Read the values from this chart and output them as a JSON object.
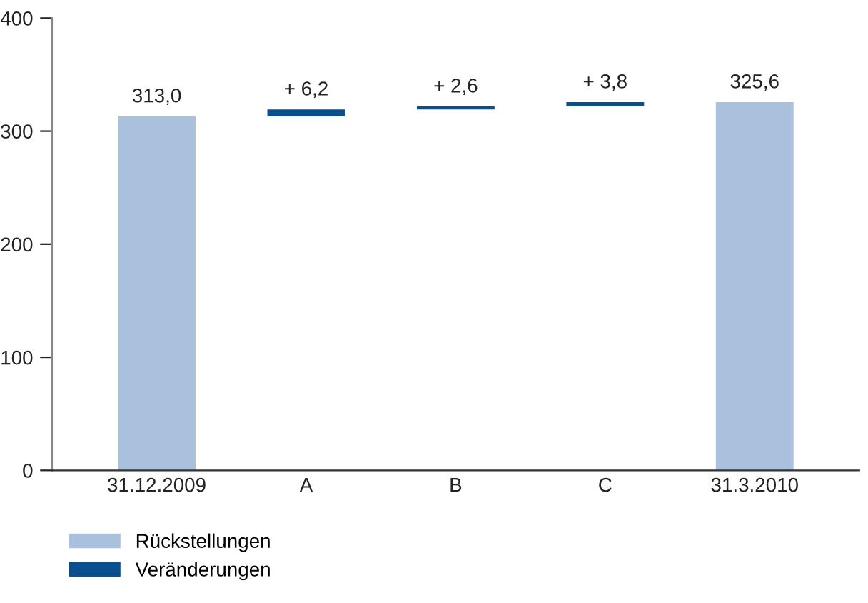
{
  "chart_data": {
    "type": "bar",
    "categories": [
      "31.12.2009",
      "A",
      "B",
      "C",
      "31.3.2010"
    ],
    "series": [
      {
        "name": "Rückstellungen",
        "color": "#a9c1dc",
        "values": [
          313.0,
          null,
          null,
          null,
          325.6
        ],
        "value_labels": [
          "313,0",
          null,
          null,
          null,
          "325,6"
        ]
      },
      {
        "name": "Veränderungen",
        "color": "#0b4f8f",
        "values": [
          null,
          6.2,
          2.6,
          3.8,
          null
        ],
        "base": [
          null,
          313.0,
          319.2,
          321.8,
          null
        ],
        "value_labels": [
          null,
          "+ 6,2",
          "+ 2,6",
          "+ 3,8",
          null
        ]
      }
    ],
    "ylim": [
      0,
      400
    ],
    "yticks": [
      0,
      100,
      200,
      300,
      400
    ],
    "grid": false,
    "legend": "bottom left"
  }
}
